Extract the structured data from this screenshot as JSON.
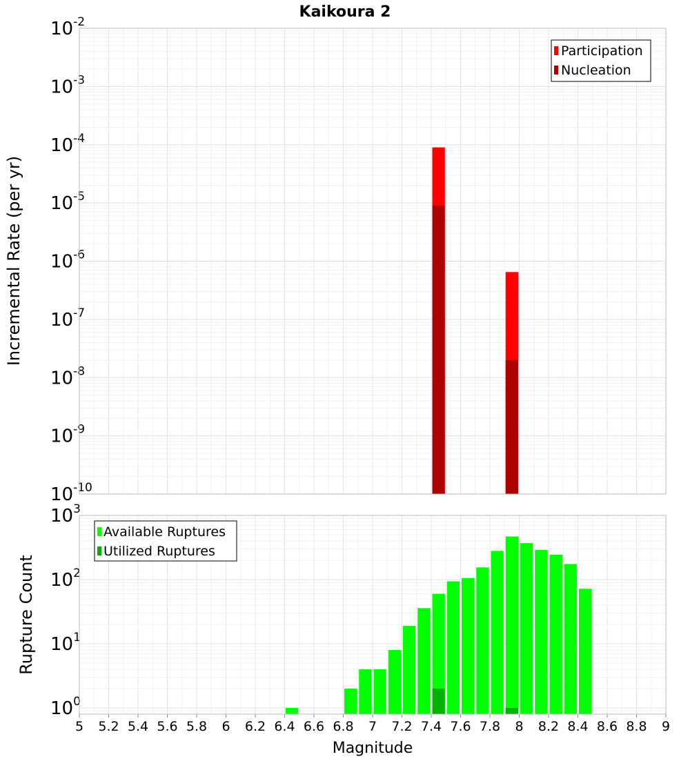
{
  "chart_data": [
    {
      "type": "bar",
      "title": "Kaikoura 2",
      "xlabel": "",
      "ylabel": "Incremental Rate (per yr)",
      "xlim": [
        5,
        9
      ],
      "ylim": [
        1e-10,
        0.01
      ],
      "yscale": "log",
      "bin_width": 0.1,
      "grid": true,
      "legend_position": "top-right",
      "series": [
        {
          "name": "Participation",
          "color": "#ff0000",
          "x": [
            7.45,
            7.95
          ],
          "values": [
            9e-05,
            6.5e-07
          ]
        },
        {
          "name": "Nucleation",
          "color": "#b00000",
          "x": [
            7.45,
            7.95
          ],
          "values": [
            9e-06,
            2e-08
          ]
        }
      ],
      "y_ticks": [
        {
          "base": "10",
          "exp": "-10",
          "value": 1e-10
        },
        {
          "base": "10",
          "exp": "-9",
          "value": 1e-09
        },
        {
          "base": "10",
          "exp": "-8",
          "value": 1e-08
        },
        {
          "base": "10",
          "exp": "-7",
          "value": 1e-07
        },
        {
          "base": "10",
          "exp": "-6",
          "value": 1e-06
        },
        {
          "base": "10",
          "exp": "-5",
          "value": 1e-05
        },
        {
          "base": "10",
          "exp": "-4",
          "value": 0.0001
        },
        {
          "base": "10",
          "exp": "-3",
          "value": 0.001
        },
        {
          "base": "10",
          "exp": "-2",
          "value": 0.01
        }
      ]
    },
    {
      "type": "bar",
      "title": "",
      "xlabel": "Magnitude",
      "ylabel": "Rupture Count",
      "xlim": [
        5,
        9
      ],
      "ylim": [
        0.8,
        1000
      ],
      "yscale": "log",
      "bin_width": 0.1,
      "grid": true,
      "legend_position": "top-left",
      "series": [
        {
          "name": "Available Ruptures",
          "color": "#00ff00",
          "x": [
            6.45,
            6.85,
            6.95,
            7.05,
            7.15,
            7.25,
            7.35,
            7.45,
            7.55,
            7.65,
            7.75,
            7.85,
            7.95,
            8.05,
            8.15,
            8.25,
            8.35,
            8.45
          ],
          "values": [
            1,
            2,
            4,
            4,
            8,
            19,
            36,
            60,
            94,
            106,
            155,
            280,
            470,
            370,
            290,
            245,
            175,
            72
          ]
        },
        {
          "name": "Utilized Ruptures",
          "color": "#00b300",
          "x": [
            7.45,
            7.95
          ],
          "values": [
            2,
            1
          ]
        }
      ],
      "x_ticks": [
        "5",
        "5.2",
        "5.4",
        "5.6",
        "5.8",
        "6",
        "6.2",
        "6.4",
        "6.6",
        "6.8",
        "7",
        "7.2",
        "7.4",
        "7.6",
        "7.8",
        "8",
        "8.2",
        "8.4",
        "8.6",
        "8.8",
        "9"
      ],
      "y_ticks": [
        {
          "base": "10",
          "exp": "0",
          "value": 1
        },
        {
          "base": "10",
          "exp": "1",
          "value": 10
        },
        {
          "base": "10",
          "exp": "2",
          "value": 100
        },
        {
          "base": "10",
          "exp": "3",
          "value": 1000
        }
      ]
    }
  ]
}
